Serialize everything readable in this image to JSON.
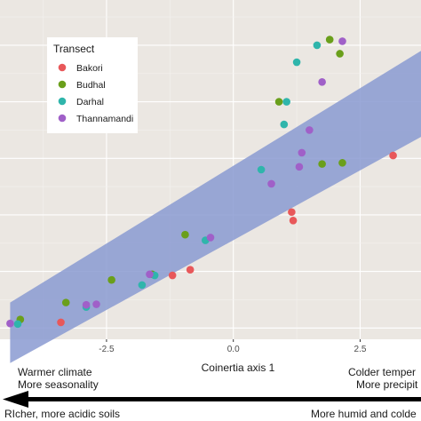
{
  "chart_data": {
    "type": "scatter",
    "xlabel": "Coinertia axis 1",
    "xticks": [
      -2.5,
      0.0,
      2.5
    ],
    "xtick_labels": [
      "-2.5",
      "0.0",
      "2.5"
    ],
    "xlim": [
      -4.6,
      3.7
    ],
    "ylim": [
      -2.2,
      3.8
    ],
    "grid": true,
    "background": "#ebe7e2",
    "legend_position": "top-left",
    "legend_title": "Transect",
    "series": [
      {
        "name": "Bakori",
        "color": "#e8585a",
        "points": [
          [
            3.15,
            1.05
          ],
          [
            1.15,
            0.05
          ],
          [
            1.18,
            -0.1
          ],
          [
            -0.85,
            -0.97
          ],
          [
            -1.2,
            -1.07
          ],
          [
            -3.4,
            -1.9
          ]
        ]
      },
      {
        "name": "Budhal",
        "color": "#6a9f1b",
        "points": [
          [
            1.9,
            3.1
          ],
          [
            2.1,
            2.85
          ],
          [
            0.9,
            2.0
          ],
          [
            1.75,
            0.9
          ],
          [
            2.15,
            0.92
          ],
          [
            -0.95,
            -0.35
          ],
          [
            -2.4,
            -1.15
          ],
          [
            -1.6,
            -1.05
          ],
          [
            -3.3,
            -1.55
          ],
          [
            -4.2,
            -1.85
          ]
        ]
      },
      {
        "name": "Darhal",
        "color": "#2fb5ab",
        "points": [
          [
            1.65,
            3.0
          ],
          [
            1.25,
            2.7
          ],
          [
            1.05,
            2.0
          ],
          [
            1.0,
            1.6
          ],
          [
            0.55,
            0.8
          ],
          [
            -0.55,
            -0.45
          ],
          [
            -1.55,
            -1.07
          ],
          [
            -1.8,
            -1.24
          ],
          [
            -2.9,
            -1.63
          ],
          [
            -4.25,
            -1.93
          ]
        ]
      },
      {
        "name": "Thannamandi",
        "color": "#a060c8",
        "points": [
          [
            2.15,
            3.07
          ],
          [
            1.75,
            2.35
          ],
          [
            1.5,
            1.5
          ],
          [
            1.35,
            1.1
          ],
          [
            1.3,
            0.85
          ],
          [
            0.75,
            0.55
          ],
          [
            -0.45,
            -0.4
          ],
          [
            -1.65,
            -1.05
          ],
          [
            -2.7,
            -1.58
          ],
          [
            -2.9,
            -1.59
          ],
          [
            -4.4,
            -1.92
          ]
        ]
      }
    ],
    "fit_band": {
      "color": "#8a9ad1",
      "x": [
        -4.4,
        3.7
      ],
      "upper": [
        -1.55,
        2.9
      ],
      "lower": [
        -2.62,
        1.38
      ]
    },
    "annotations": {
      "left_lines": [
        "Warmer climate",
        "More seasonality"
      ],
      "right_lines": [
        "Colder temper",
        "More precipit"
      ],
      "bottom_left": "RIcher, more acidic soils",
      "bottom_right": "More humid and colde"
    }
  }
}
